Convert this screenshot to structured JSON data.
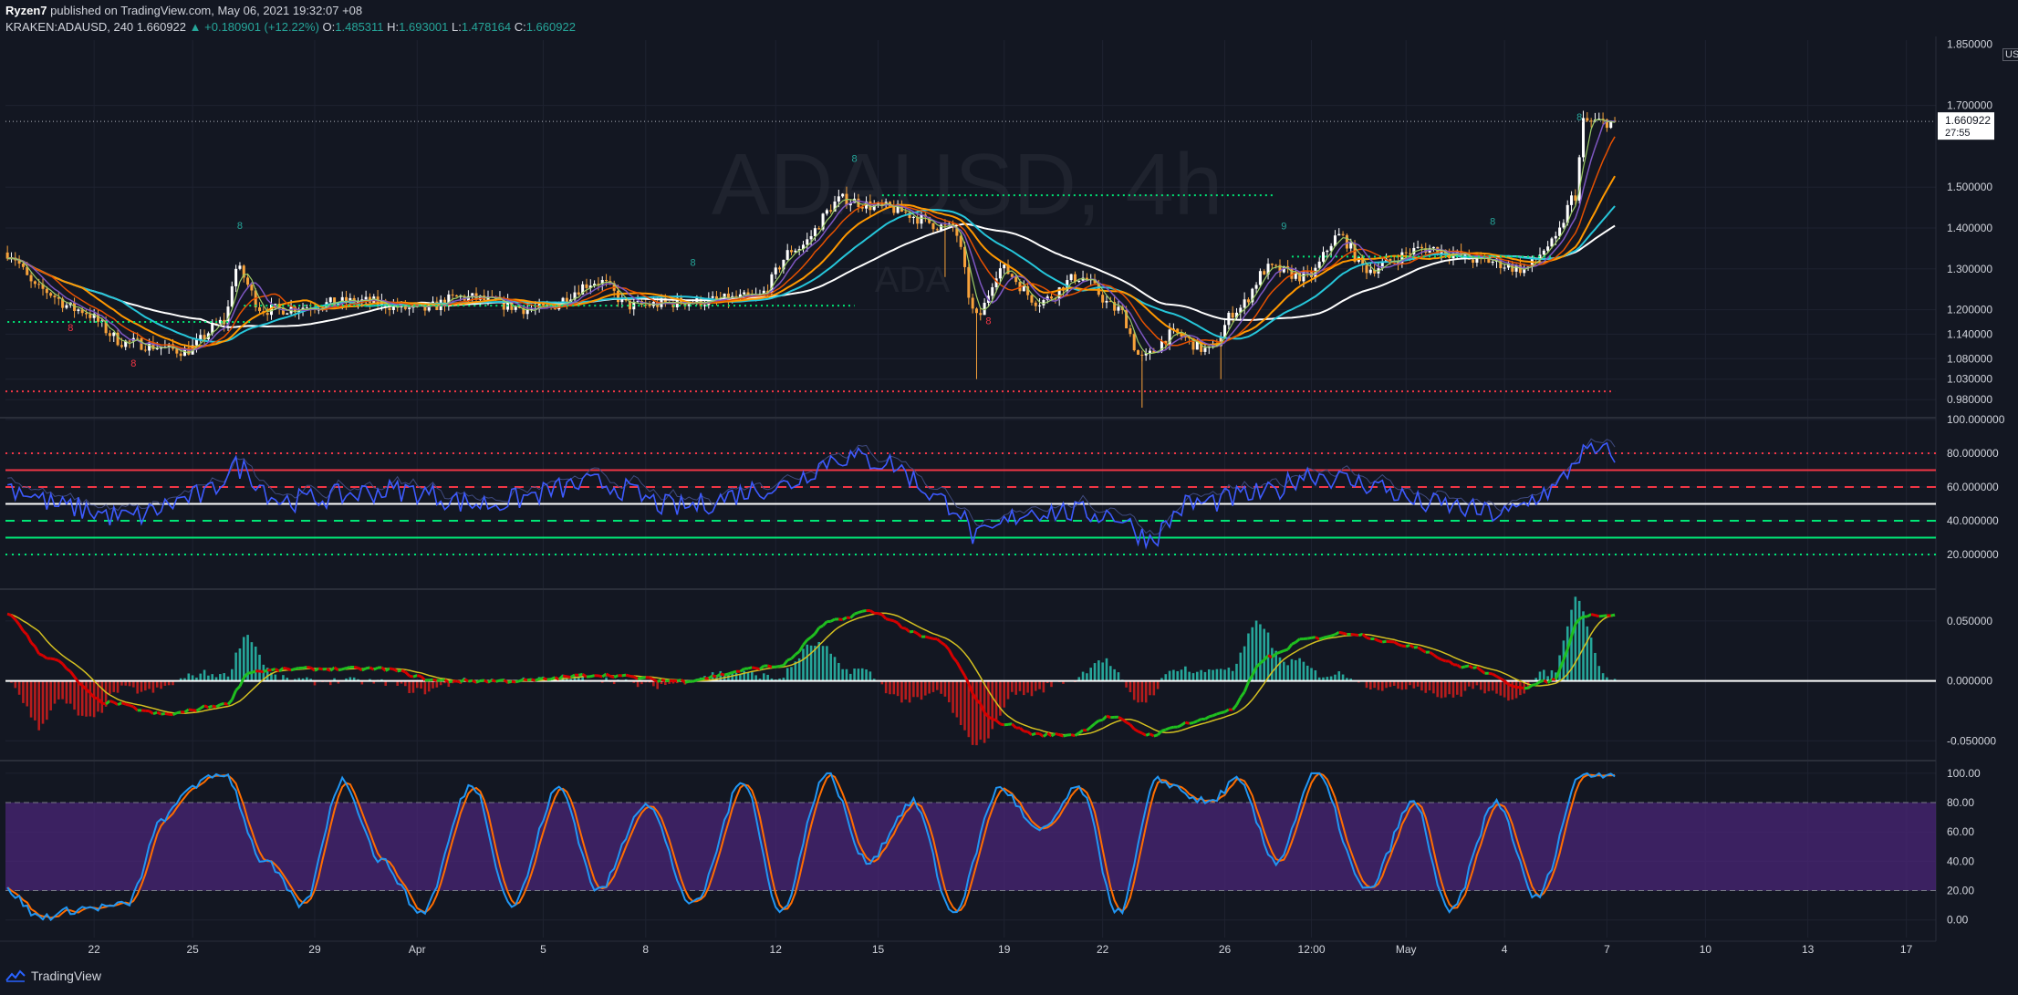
{
  "header": {
    "publisher": "Ryzen7",
    "published_on": "published on TradingView.com, May 06, 2021 19:32:07 +08",
    "symbol": "KRAKEN:ADAUSD, 240",
    "last": "1.660922",
    "change": "▲ +0.180901 (+12.22%)",
    "o_label": "O:",
    "o": "1.485311",
    "h_label": "H:",
    "h": "1.693001",
    "l_label": "L:",
    "l": "1.478164",
    "c_label": "C:",
    "c": "1.660922"
  },
  "watermark": {
    "symbol": "ADAUSD, 4h",
    "sub": "ADA"
  },
  "price_label": {
    "value": "1.660922",
    "countdown": "27:55",
    "currency": "USD"
  },
  "footer": {
    "brand": "TradingView"
  },
  "colors": {
    "background": "#131722",
    "grid": "#1e2230",
    "up_candle": "#ffffff",
    "down_candle": "#f7a23b",
    "ema_white": "#ffffff",
    "ema_cyan": "#26c6da",
    "ema_orange": "#ff9800",
    "ema_dark_orange": "#e65100",
    "ema_purple": "#7e57c2",
    "ema_green": "#9ccc65",
    "rsi": "#3d5afe",
    "macd_up": "#26a69a",
    "macd_down": "#b71c1c",
    "stoch_k": "#2196f3",
    "stoch_d": "#ff6d00",
    "stoch_band": "#4a2677"
  },
  "chart_data": [
    {
      "type": "candlestick",
      "pane": "price",
      "ylim": [
        0.94,
        1.86
      ],
      "yticks": [
        "1.700000",
        "1.500000",
        "1.400000",
        "1.300000",
        "1.200000",
        "1.140000",
        "1.080000",
        "1.030000",
        "0.980000"
      ],
      "ytick_values": [
        1.7,
        1.5,
        1.4,
        1.3,
        1.2,
        1.14,
        1.08,
        1.03,
        0.98
      ],
      "top_partial_tick": "1.850000",
      "x_ticks": [
        "22",
        "25",
        "29",
        "Apr",
        "5",
        "8",
        "12",
        "15",
        "19",
        "22",
        "26",
        "12:00",
        "May",
        "4",
        "7",
        "10",
        "13",
        "17"
      ],
      "x_tick_index": [
        22,
        47,
        78,
        104,
        136,
        162,
        195,
        221,
        253,
        278,
        309,
        331,
        355,
        380,
        406,
        431,
        457,
        482
      ],
      "anchors": [
        [
          0,
          1.34
        ],
        [
          8,
          1.25
        ],
        [
          18,
          1.2
        ],
        [
          30,
          1.12
        ],
        [
          45,
          1.1
        ],
        [
          55,
          1.17
        ],
        [
          58,
          1.3
        ],
        [
          65,
          1.2
        ],
        [
          90,
          1.22
        ],
        [
          105,
          1.2
        ],
        [
          115,
          1.23
        ],
        [
          135,
          1.2
        ],
        [
          150,
          1.27
        ],
        [
          158,
          1.21
        ],
        [
          175,
          1.22
        ],
        [
          190,
          1.23
        ],
        [
          200,
          1.35
        ],
        [
          212,
          1.47
        ],
        [
          222,
          1.45
        ],
        [
          240,
          1.4
        ],
        [
          246,
          1.18
        ],
        [
          252,
          1.3
        ],
        [
          262,
          1.22
        ],
        [
          272,
          1.28
        ],
        [
          282,
          1.2
        ],
        [
          288,
          1.08
        ],
        [
          296,
          1.14
        ],
        [
          305,
          1.1
        ],
        [
          312,
          1.2
        ],
        [
          320,
          1.3
        ],
        [
          330,
          1.28
        ],
        [
          338,
          1.38
        ],
        [
          345,
          1.3
        ],
        [
          360,
          1.35
        ],
        [
          375,
          1.32
        ],
        [
          385,
          1.3
        ],
        [
          392,
          1.36
        ],
        [
          398,
          1.48
        ],
        [
          400,
          1.66
        ]
      ],
      "last_price": 1.660922,
      "support_red": 1.0,
      "support_green": [
        [
          60,
          162,
          1.21
        ],
        [
          169,
          215,
          1.21
        ],
        [
          222,
          322,
          1.48
        ],
        [
          326,
          392,
          1.33
        ],
        [
          0,
          62,
          1.17
        ]
      ],
      "td_counts": [
        {
          "i": 59,
          "t": "8",
          "c": "up"
        },
        {
          "i": 215,
          "t": "8",
          "c": "up"
        },
        {
          "i": 174,
          "t": "8",
          "c": "up"
        },
        {
          "i": 324,
          "t": "9",
          "c": "up"
        },
        {
          "i": 377,
          "t": "8",
          "c": "up"
        },
        {
          "i": 399,
          "t": "8",
          "c": "up"
        },
        {
          "i": 249,
          "t": "8",
          "c": "down"
        },
        {
          "i": 32,
          "t": "8",
          "c": "down"
        },
        {
          "i": 16,
          "t": "8",
          "c": "down"
        }
      ],
      "moving_averages": [
        {
          "color": "#ffffff",
          "len": 50,
          "width": 2
        },
        {
          "color": "#26c6da",
          "len": 30,
          "width": 2
        },
        {
          "color": "#ff9800",
          "len": 20,
          "width": 2
        },
        {
          "color": "#e65100",
          "len": 12,
          "width": 1.5
        },
        {
          "color": "#7e57c2",
          "len": 7,
          "width": 1.5
        },
        {
          "color": "#9ccc65",
          "len": 4,
          "width": 1.2
        }
      ]
    },
    {
      "type": "line",
      "pane": "rsi",
      "ylim": [
        0,
        100
      ],
      "yticks": [
        "100.000000",
        "80.000000",
        "60.000000",
        "40.000000",
        "20.000000"
      ],
      "ytick_values": [
        100,
        80,
        60,
        40,
        20
      ],
      "levels": [
        {
          "v": 80,
          "color": "#f23645",
          "style": "dotted"
        },
        {
          "v": 70,
          "color": "#f23645",
          "style": "solid"
        },
        {
          "v": 60,
          "color": "#f23645",
          "style": "dashed"
        },
        {
          "v": 50,
          "color": "#ffffff",
          "style": "solid"
        },
        {
          "v": 40,
          "color": "#00e676",
          "style": "dashed"
        },
        {
          "v": 30,
          "color": "#00e676",
          "style": "solid"
        },
        {
          "v": 20,
          "color": "#00e676",
          "style": "dotted"
        }
      ],
      "anchors": [
        [
          0,
          60
        ],
        [
          15,
          48
        ],
        [
          30,
          42
        ],
        [
          50,
          55
        ],
        [
          58,
          72
        ],
        [
          70,
          52
        ],
        [
          100,
          58
        ],
        [
          120,
          50
        ],
        [
          150,
          62
        ],
        [
          170,
          48
        ],
        [
          195,
          60
        ],
        [
          212,
          78
        ],
        [
          222,
          75
        ],
        [
          240,
          50
        ],
        [
          246,
          30
        ],
        [
          260,
          46
        ],
        [
          280,
          44
        ],
        [
          290,
          30
        ],
        [
          300,
          50
        ],
        [
          320,
          56
        ],
        [
          330,
          68
        ],
        [
          345,
          62
        ],
        [
          360,
          50
        ],
        [
          380,
          44
        ],
        [
          392,
          58
        ],
        [
          400,
          80
        ]
      ]
    },
    {
      "type": "histogram+line",
      "pane": "macd",
      "ylim": [
        -0.065,
        0.075
      ],
      "yticks": [
        "0.050000",
        "0.000000",
        "-0.050000"
      ],
      "ytick_values": [
        0.05,
        0.0,
        -0.05
      ],
      "macd_anchors": [
        [
          0,
          0.055
        ],
        [
          10,
          0.02
        ],
        [
          25,
          -0.018
        ],
        [
          40,
          -0.028
        ],
        [
          55,
          -0.02
        ],
        [
          62,
          0.008
        ],
        [
          75,
          0.01
        ],
        [
          95,
          0.01
        ],
        [
          110,
          0.0
        ],
        [
          130,
          0.0
        ],
        [
          150,
          0.005
        ],
        [
          170,
          0.0
        ],
        [
          195,
          0.012
        ],
        [
          210,
          0.05
        ],
        [
          218,
          0.058
        ],
        [
          235,
          0.035
        ],
        [
          252,
          -0.035
        ],
        [
          262,
          -0.045
        ],
        [
          270,
          -0.045
        ],
        [
          280,
          -0.03
        ],
        [
          290,
          -0.045
        ],
        [
          300,
          -0.035
        ],
        [
          310,
          -0.025
        ],
        [
          320,
          0.02
        ],
        [
          330,
          0.035
        ],
        [
          340,
          0.04
        ],
        [
          355,
          0.03
        ],
        [
          370,
          0.012
        ],
        [
          385,
          -0.005
        ],
        [
          392,
          0.0
        ],
        [
          400,
          0.055
        ]
      ],
      "signal_len": 9
    },
    {
      "type": "line",
      "pane": "stoch",
      "ylim": [
        -12,
        108
      ],
      "yticks": [
        "100.00",
        "80.00",
        "60.00",
        "40.00",
        "20.00",
        "0.00"
      ],
      "ytick_values": [
        100,
        80,
        60,
        40,
        20,
        0
      ],
      "band": [
        20,
        80
      ],
      "k_anchors": [
        [
          0,
          20
        ],
        [
          8,
          2
        ],
        [
          20,
          8
        ],
        [
          30,
          10
        ],
        [
          40,
          70
        ],
        [
          47,
          92
        ],
        [
          55,
          100
        ],
        [
          65,
          40
        ],
        [
          75,
          10
        ],
        [
          85,
          95
        ],
        [
          95,
          40
        ],
        [
          105,
          5
        ],
        [
          118,
          92
        ],
        [
          128,
          10
        ],
        [
          140,
          90
        ],
        [
          150,
          20
        ],
        [
          162,
          80
        ],
        [
          174,
          10
        ],
        [
          187,
          95
        ],
        [
          196,
          5
        ],
        [
          208,
          100
        ],
        [
          218,
          40
        ],
        [
          230,
          80
        ],
        [
          240,
          5
        ],
        [
          252,
          90
        ],
        [
          262,
          60
        ],
        [
          272,
          90
        ],
        [
          282,
          5
        ],
        [
          292,
          95
        ],
        [
          305,
          80
        ],
        [
          312,
          95
        ],
        [
          322,
          40
        ],
        [
          332,
          100
        ],
        [
          345,
          20
        ],
        [
          357,
          80
        ],
        [
          366,
          5
        ],
        [
          378,
          80
        ],
        [
          388,
          15
        ],
        [
          400,
          100
        ],
        [
          408,
          100
        ]
      ],
      "d_smooth": 3
    }
  ]
}
